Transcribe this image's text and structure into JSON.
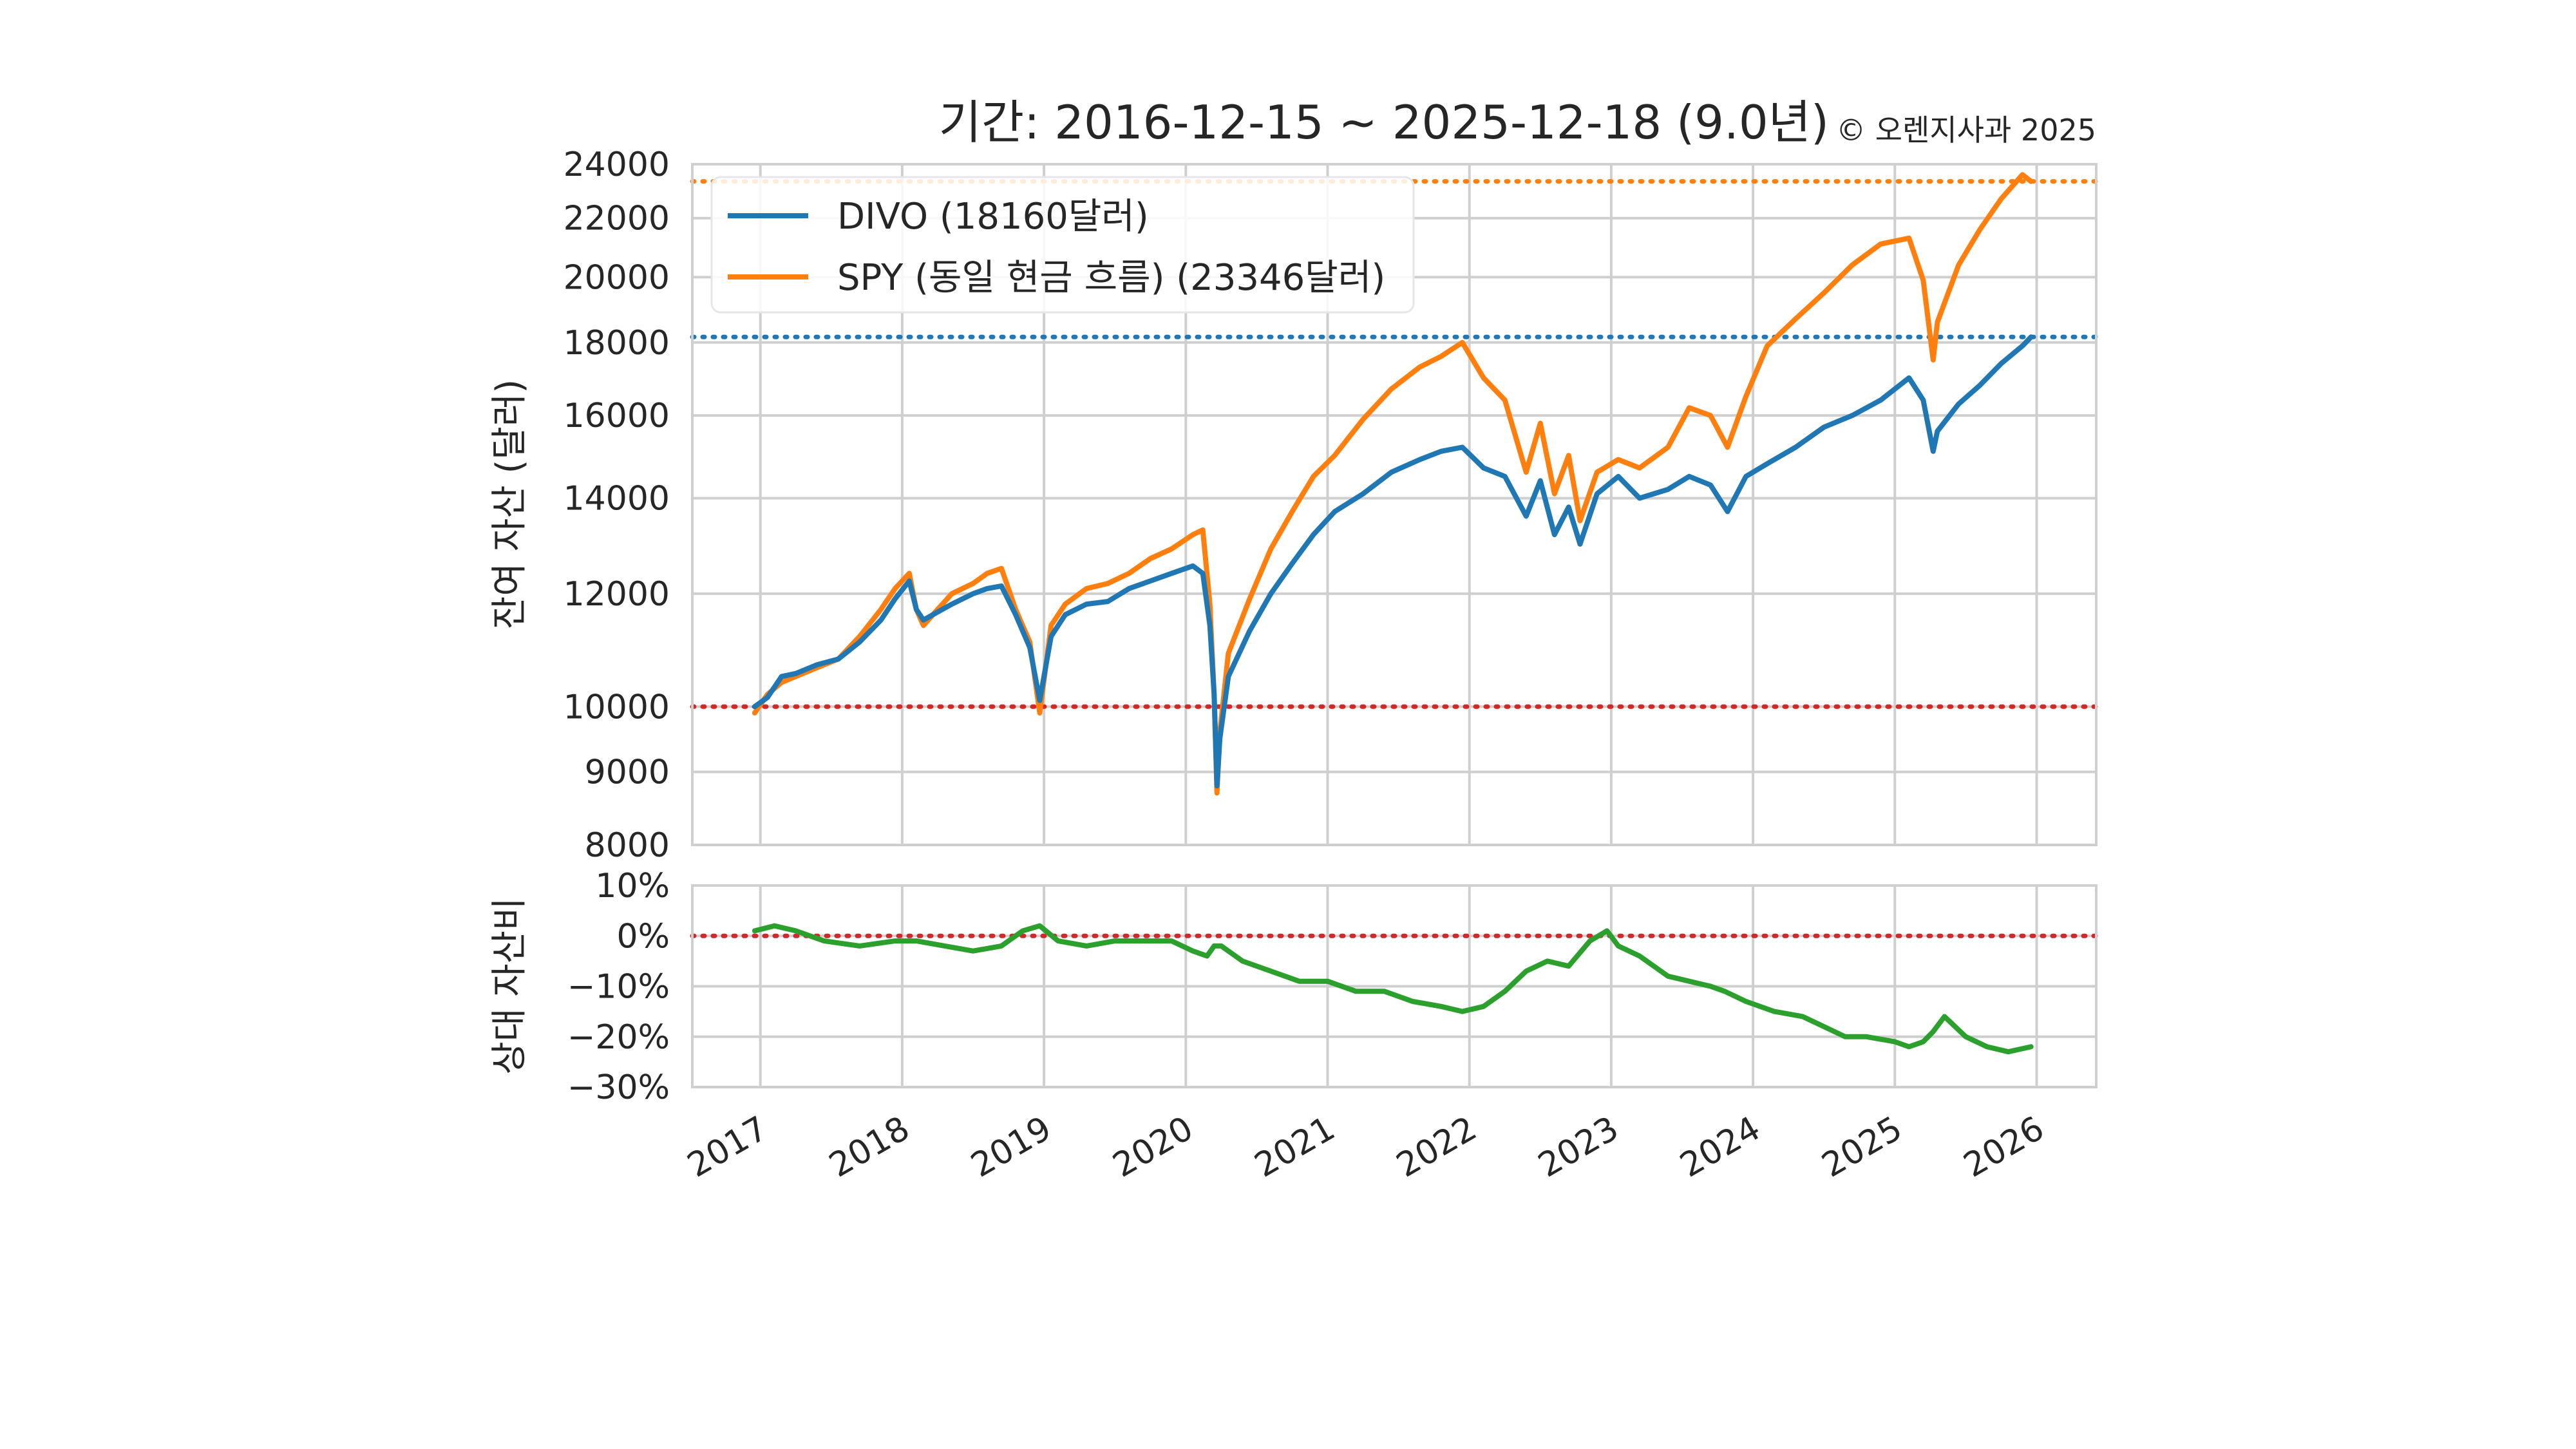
{
  "title": {
    "main": "기간: 2016-12-15 ~ 2025-12-18 (9.0년)",
    "copyright": "© 오렌지사과 2025"
  },
  "colors": {
    "divo": "#1f77b4",
    "spy": "#ff7f0e",
    "ratio": "#2ca02c",
    "reference": "#d62728",
    "grid": "#cfcfcf"
  },
  "chart_data": [
    {
      "type": "line",
      "ylabel": "잔여 자산 (달러)",
      "yscale": "log",
      "ylim": [
        8000,
        24000
      ],
      "yticks": [
        8000,
        9000,
        10000,
        12000,
        14000,
        16000,
        18000,
        20000,
        22000,
        24000
      ],
      "xlim": [
        2016.52,
        2026.42
      ],
      "legend_position": "top-left",
      "grid": true,
      "legend": [
        "DIVO (18160달러)",
        "SPY (동일 현금 흐름) (23346달러)"
      ],
      "reference_lines": [
        {
          "y": 23346,
          "color": "#ff7f0e",
          "style": "dotted"
        },
        {
          "y": 18160,
          "color": "#1f77b4",
          "style": "dotted"
        },
        {
          "y": 10000,
          "color": "#d62728",
          "style": "dotted"
        }
      ],
      "series": [
        {
          "name": "DIVO (18160달러)",
          "color": "#1f77b4",
          "x": [
            2016.96,
            2017.05,
            2017.15,
            2017.25,
            2017.4,
            2017.55,
            2017.7,
            2017.85,
            2017.95,
            2018.05,
            2018.1,
            2018.15,
            2018.25,
            2018.35,
            2018.5,
            2018.6,
            2018.7,
            2018.8,
            2018.9,
            2018.97,
            2019.05,
            2019.15,
            2019.3,
            2019.45,
            2019.6,
            2019.75,
            2019.9,
            2020.05,
            2020.12,
            2020.17,
            2020.2,
            2020.22,
            2020.24,
            2020.3,
            2020.45,
            2020.6,
            2020.75,
            2020.9,
            2021.05,
            2021.25,
            2021.45,
            2021.65,
            2021.8,
            2021.95,
            2022.1,
            2022.25,
            2022.4,
            2022.5,
            2022.6,
            2022.7,
            2022.78,
            2022.9,
            2023.05,
            2023.2,
            2023.4,
            2023.55,
            2023.7,
            2023.82,
            2023.95,
            2024.1,
            2024.3,
            2024.5,
            2024.7,
            2024.9,
            2025.1,
            2025.2,
            2025.27,
            2025.3,
            2025.45,
            2025.6,
            2025.75,
            2025.9,
            2025.96
          ],
          "y": [
            10000,
            10150,
            10500,
            10550,
            10700,
            10800,
            11100,
            11500,
            11900,
            12250,
            11700,
            11500,
            11650,
            11800,
            12000,
            12100,
            12150,
            11600,
            11000,
            10100,
            11200,
            11600,
            11800,
            11850,
            12100,
            12250,
            12400,
            12550,
            12400,
            11400,
            10200,
            8800,
            9500,
            10500,
            11300,
            12000,
            12600,
            13200,
            13700,
            14100,
            14600,
            14900,
            15100,
            15200,
            14700,
            14500,
            13600,
            14400,
            13200,
            13800,
            13000,
            14100,
            14500,
            14000,
            14200,
            14500,
            14300,
            13700,
            14500,
            14800,
            15200,
            15700,
            16000,
            16400,
            17000,
            16400,
            15100,
            15600,
            16300,
            16800,
            17400,
            17900,
            18160
          ]
        },
        {
          "name": "SPY (동일 현금 흐름) (23346달러)",
          "color": "#ff7f0e",
          "x": [
            2016.96,
            2017.05,
            2017.15,
            2017.25,
            2017.4,
            2017.55,
            2017.7,
            2017.85,
            2017.95,
            2018.05,
            2018.1,
            2018.15,
            2018.25,
            2018.35,
            2018.5,
            2018.6,
            2018.7,
            2018.8,
            2018.9,
            2018.97,
            2019.05,
            2019.15,
            2019.3,
            2019.45,
            2019.6,
            2019.75,
            2019.9,
            2020.05,
            2020.12,
            2020.17,
            2020.2,
            2020.22,
            2020.24,
            2020.3,
            2020.45,
            2020.6,
            2020.75,
            2020.9,
            2021.05,
            2021.25,
            2021.45,
            2021.65,
            2021.8,
            2021.95,
            2022.1,
            2022.25,
            2022.4,
            2022.5,
            2022.6,
            2022.7,
            2022.78,
            2022.9,
            2023.05,
            2023.2,
            2023.4,
            2023.55,
            2023.7,
            2023.82,
            2023.95,
            2024.1,
            2024.3,
            2024.5,
            2024.7,
            2024.9,
            2025.1,
            2025.2,
            2025.27,
            2025.3,
            2025.45,
            2025.6,
            2025.75,
            2025.9,
            2025.96
          ],
          "y": [
            9900,
            10200,
            10400,
            10500,
            10650,
            10800,
            11200,
            11700,
            12100,
            12400,
            11700,
            11400,
            11700,
            12000,
            12200,
            12400,
            12500,
            11700,
            11100,
            9900,
            11400,
            11800,
            12100,
            12200,
            12400,
            12700,
            12900,
            13200,
            13300,
            11800,
            10200,
            8700,
            9600,
            10900,
            11900,
            12900,
            13700,
            14500,
            15000,
            15900,
            16700,
            17300,
            17600,
            18000,
            17000,
            16400,
            14600,
            15800,
            14100,
            15000,
            13500,
            14600,
            14900,
            14700,
            15200,
            16200,
            16000,
            15200,
            16500,
            17900,
            18700,
            19500,
            20400,
            21100,
            21300,
            19900,
            17500,
            18600,
            20400,
            21600,
            22700,
            23600,
            23346
          ]
        }
      ]
    },
    {
      "type": "line",
      "ylabel": "상대 자산비",
      "ylim": [
        -30,
        10
      ],
      "yticks": [
        -30,
        -20,
        -10,
        0,
        10
      ],
      "yticklabels": [
        "−30%",
        "−20%",
        "−10%",
        "0%",
        "10%"
      ],
      "xlim": [
        2016.52,
        2026.42
      ],
      "xticks": [
        2017,
        2018,
        2019,
        2020,
        2021,
        2022,
        2023,
        2024,
        2025,
        2026
      ],
      "xticklabels": [
        "2017",
        "2018",
        "2019",
        "2020",
        "2021",
        "2022",
        "2023",
        "2024",
        "2025",
        "2026"
      ],
      "grid": true,
      "reference_lines": [
        {
          "y": 0,
          "color": "#d62728",
          "style": "dotted"
        }
      ],
      "series": [
        {
          "color": "#2ca02c",
          "x": [
            2016.96,
            2017.1,
            2017.25,
            2017.45,
            2017.7,
            2017.95,
            2018.1,
            2018.3,
            2018.5,
            2018.7,
            2018.85,
            2018.97,
            2019.1,
            2019.3,
            2019.5,
            2019.7,
            2019.9,
            2020.05,
            2020.15,
            2020.2,
            2020.25,
            2020.4,
            2020.6,
            2020.8,
            2021.0,
            2021.2,
            2021.4,
            2021.6,
            2021.8,
            2021.95,
            2022.1,
            2022.25,
            2022.4,
            2022.55,
            2022.7,
            2022.85,
            2022.97,
            2023.05,
            2023.2,
            2023.4,
            2023.55,
            2023.7,
            2023.8,
            2023.95,
            2024.15,
            2024.35,
            2024.5,
            2024.65,
            2024.8,
            2025.0,
            2025.1,
            2025.2,
            2025.27,
            2025.35,
            2025.5,
            2025.65,
            2025.8,
            2025.96
          ],
          "y": [
            1,
            2,
            1,
            -1,
            -2,
            -1,
            -1,
            -2,
            -3,
            -2,
            1,
            2,
            -1,
            -2,
            -1,
            -1,
            -1,
            -3,
            -4,
            -2,
            -2,
            -5,
            -7,
            -9,
            -9,
            -11,
            -11,
            -13,
            -14,
            -15,
            -14,
            -11,
            -7,
            -5,
            -6,
            -1,
            1,
            -2,
            -4,
            -8,
            -9,
            -10,
            -11,
            -13,
            -15,
            -16,
            -18,
            -20,
            -20,
            -21,
            -22,
            -21,
            -19,
            -16,
            -20,
            -22,
            -23,
            -22
          ]
        }
      ]
    }
  ]
}
